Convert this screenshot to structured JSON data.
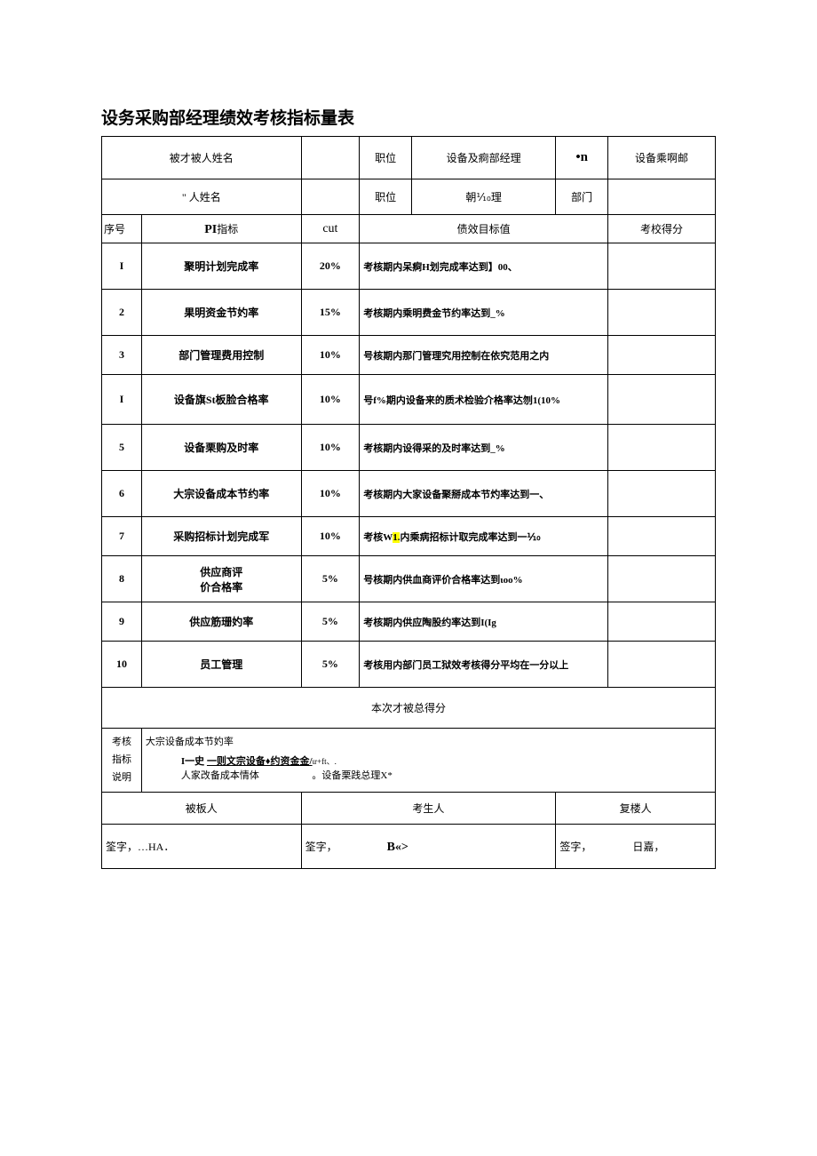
{
  "title": "设务采购部经理绩效考核指标量表",
  "header": {
    "r1c1": "被才被人姓名",
    "r1c3": "职位",
    "r1c4": "设备及痾部经理",
    "r1c5": "•n",
    "r1c6": "设备乘啊邮",
    "r2c1": "\" 人姓名",
    "r2c3": "职位",
    "r2c4": "朝⅒理",
    "r2c5": "部门"
  },
  "cols": {
    "seq": "序号",
    "kpi_pre": "PI",
    "kpi_suf": "指标",
    "weight": "cut",
    "target": "债效目标值",
    "score": "考校得分"
  },
  "rows": [
    {
      "seq": "I",
      "ind": "聚明计划完成率",
      "w": "20%",
      "t": "考核期内呆痾H划完成率达到】00、",
      "h": "h52"
    },
    {
      "seq": "2",
      "ind": "果明资金节妁率",
      "w": "15%",
      "t": "考核期内乘明费金节约率达到_%",
      "h": "h52"
    },
    {
      "seq": "3",
      "ind": "部门管理费用控制",
      "w": "10%",
      "t": "号核期内那门管理究用控制在依究范用之内",
      "h": "h44"
    },
    {
      "seq": "I",
      "ind": "设备旗St板脸合格率",
      "w": "10%",
      "t": "号f%期内设备来的质术检验介格率达刎1(10%",
      "h": "h56"
    },
    {
      "seq": "5",
      "ind": "设备栗购及时率",
      "w": "10%",
      "t": "考核期内设得采的及时率达到_%",
      "h": "h52"
    },
    {
      "seq": "6",
      "ind": "大宗设备成本节约率",
      "w": "10%",
      "t": "考核期内大家设备聚掰成本节灼率达到一、",
      "h": "h52"
    },
    {
      "seq": "7",
      "ind": "采购招标计划完成军",
      "w": "10%",
      "t_pre": "考核W",
      "t_hl": "1.",
      "t_post": "内乘病招标计取完成率达到一⅒",
      "h": "h44"
    },
    {
      "seq": "8",
      "ind": "供应商评\n价合格率",
      "w": "5%",
      "t": "号核期内供血商评价合格率达到ιoo%",
      "h": "h52"
    },
    {
      "seq": "9",
      "ind": "供应筋珊妁率",
      "w": "5%",
      "t": "考核期内供应陶股约率达到I(Ig",
      "h": "h44"
    },
    {
      "seq": "10",
      "ind": "员工管理",
      "w": "5%",
      "t": "考核用内部门员工狱效考核得分平均在一分以上",
      "h": "h52"
    }
  ],
  "total": "本次才被总得分",
  "notes": {
    "label": "考核\n指标\n说明",
    "line1": "大宗设备成本节妁率",
    "line2_pre": "I一史 ",
    "line2_u": "一则文宗设备♦约资金金/",
    "line2_sub": "ιr+ft、.",
    "line3a": "人家改备成本情体",
    "line3b": "。设备栗践总理X*"
  },
  "sig": {
    "h1": "被板人",
    "h2": "考生人",
    "h3": "复楼人",
    "s1": "筌字，…HA．",
    "s2a": "筌字，",
    "s2b": "B«>",
    "s3a": "签字，",
    "s3b": "日嘉，"
  }
}
